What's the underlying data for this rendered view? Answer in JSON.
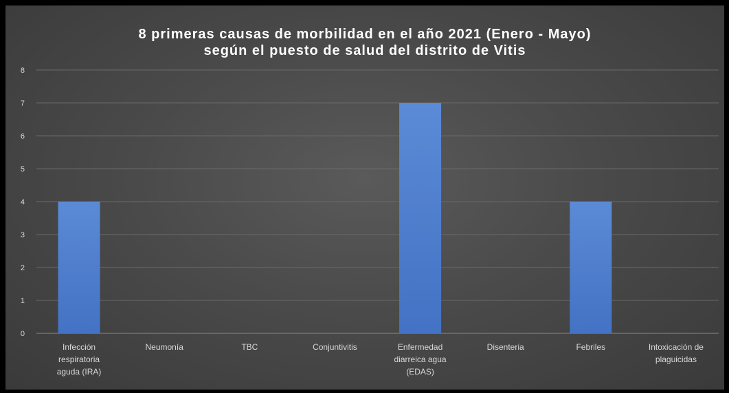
{
  "chart_data": {
    "type": "bar",
    "title_lines": [
      "8 primeras causas de morbilidad en el año 2021 (Enero - Mayo)",
      "según el puesto de salud del distrito de Vitis"
    ],
    "categories": [
      [
        "Infección",
        "respiratoria",
        "aguda (IRA)"
      ],
      [
        "Neumonía"
      ],
      [
        "TBC"
      ],
      [
        "Conjuntivitis"
      ],
      [
        "Enfermedad",
        "diarreica agua",
        "(EDAS)"
      ],
      [
        "Disenteria"
      ],
      [
        "Febriles"
      ],
      [
        "Intoxicación de",
        "plaguicidas"
      ]
    ],
    "values": [
      4,
      0,
      0,
      0,
      7,
      0,
      4,
      0
    ],
    "yticks": [
      "0",
      "1",
      "2",
      "3",
      "4",
      "5",
      "6",
      "7",
      "8"
    ],
    "ylim": [
      0,
      8
    ],
    "grid": true,
    "legend": "none",
    "bar_color": "#4472c4",
    "bar_color_light": "#5b8ad6"
  }
}
